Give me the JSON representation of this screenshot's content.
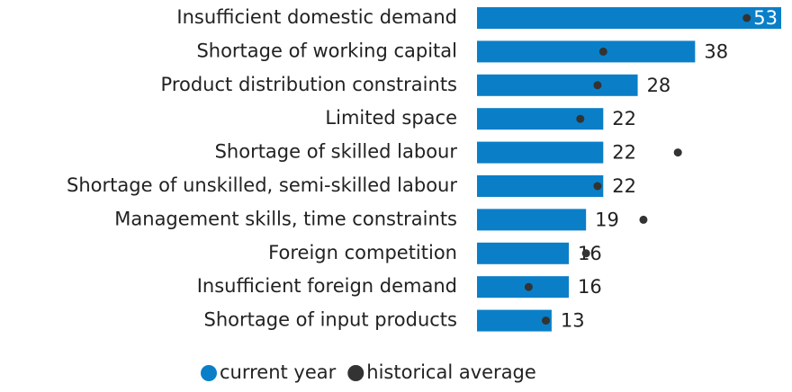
{
  "chart_data": {
    "type": "bar",
    "categories": [
      "Insufficient domestic demand",
      "Shortage of working capital",
      "Product distribution constraints",
      "Limited space",
      "Shortage of skilled labour",
      "Shortage of unskilled, semi-skilled labour",
      "Management skills, time constraints",
      "Foreign competition",
      "Insufficient foreign demand",
      "Shortage of input products"
    ],
    "series": [
      {
        "name": "current year",
        "color": "#0a7fc8",
        "values": [
          53,
          38,
          28,
          22,
          22,
          22,
          19,
          16,
          16,
          13
        ]
      },
      {
        "name": "historical average",
        "color": "#333333",
        "values": [
          47,
          22,
          21,
          18,
          35,
          21,
          29,
          19,
          9,
          12
        ]
      }
    ]
  }
}
